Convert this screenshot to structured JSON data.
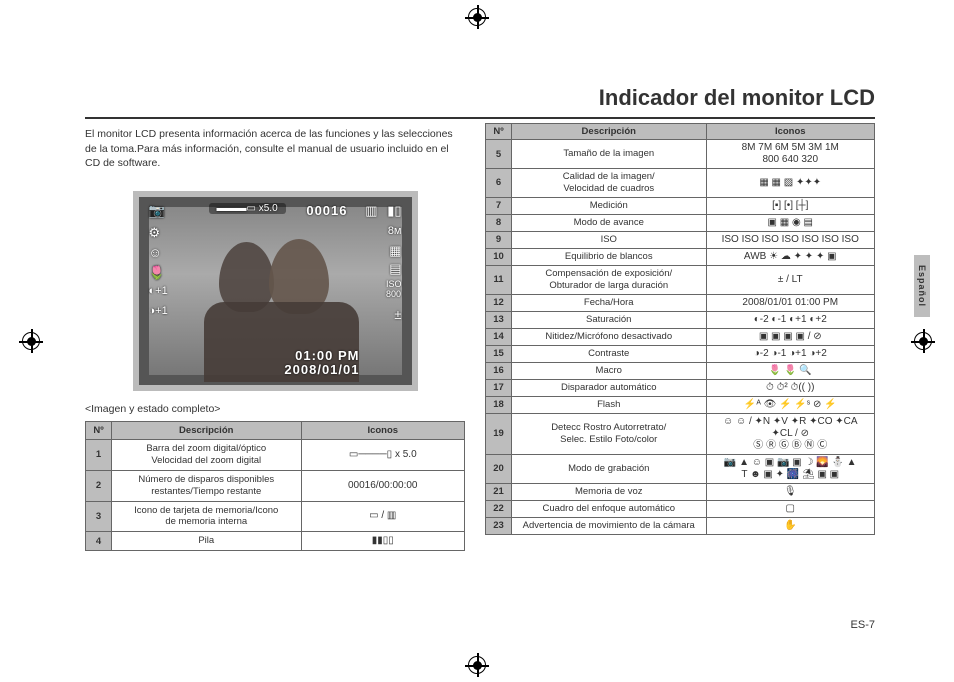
{
  "title": "Indicador del monitor LCD",
  "intro": "El monitor LCD presenta información acerca de las funciones y las selecciones de la toma.Para más información, consulte el manual de usuario incluido en el CD de software.",
  "lcd": {
    "zoom_label": "x5.0",
    "counter": "00016",
    "clock": "01:00 PM",
    "date": "2008/01/01",
    "overlay_icons_left": [
      "📷",
      "⚙",
      "☺",
      "🌷",
      "◐+1",
      "◑+1"
    ],
    "overlay_icons_right": [
      "8M",
      "▦",
      "▤",
      "150 800",
      "±"
    ],
    "overlay_top_icons": [
      "🔋",
      "📶"
    ]
  },
  "caption": "<Imagen y estado completo>",
  "table_headers": {
    "num": "Nº",
    "desc": "Descripción",
    "icons": "Iconos"
  },
  "left_rows": [
    {
      "n": "1",
      "desc": "Barra del zoom digital/óptico\nVelocidad del zoom digital",
      "icons": "▭────▯ x 5.0"
    },
    {
      "n": "2",
      "desc": "Número de disparos disponibles\nrestantes/Tiempo restante",
      "icons": "00016/00:00:00"
    },
    {
      "n": "3",
      "desc": "Icono de tarjeta de memoria/Icono\nde memoria interna",
      "icons": "▭ / ▥"
    },
    {
      "n": "4",
      "desc": "Pila",
      "icons": "▮▮▯▯"
    }
  ],
  "right_rows": [
    {
      "n": "5",
      "desc": "Tamaño de la imagen",
      "icons": "8M 7M 6M 5M 3M 1M\n800 640 320"
    },
    {
      "n": "6",
      "desc": "Calidad de la imagen/\nVelocidad de cuadros",
      "icons": "▦ ▦ ▨ ✦✦✦"
    },
    {
      "n": "7",
      "desc": "Medición",
      "icons": "[▪] [•] [┼]"
    },
    {
      "n": "8",
      "desc": "Modo de avance",
      "icons": "▣ ▦ ◉ ▤"
    },
    {
      "n": "9",
      "desc": "ISO",
      "icons": "ISO ISO ISO ISO ISO ISO ISO"
    },
    {
      "n": "10",
      "desc": "Equilibrio de blancos",
      "icons": "AWB ☀ ☁ ✦ ✦ ✦ ▣"
    },
    {
      "n": "11",
      "desc": "Compensación de exposición/\nObturador de larga duración",
      "icons": "± / LT"
    },
    {
      "n": "12",
      "desc": "Fecha/Hora",
      "icons": "2008/01/01 01:00 PM"
    },
    {
      "n": "13",
      "desc": "Saturación",
      "icons": "◐-2 ◐-1 ◐+1 ◐+2"
    },
    {
      "n": "14",
      "desc": "Nitidez/Micrófono desactivado",
      "icons": "▣ ▣ ▣ ▣ / ⊘"
    },
    {
      "n": "15",
      "desc": "Contraste",
      "icons": "◑-2 ◑-1 ◑+1 ◑+2"
    },
    {
      "n": "16",
      "desc": "Macro",
      "icons": "🌷 🌷 🔍"
    },
    {
      "n": "17",
      "desc": "Disparador automático",
      "icons": "⏱ ⏱² ⏱(( ))"
    },
    {
      "n": "18",
      "desc": "Flash",
      "icons": "⚡ᴬ 👁 ⚡ ⚡ˢ ⊘ ⚡"
    },
    {
      "n": "19",
      "desc": "Detecc Rostro Autorretrato/\nSelec. Estilo Foto/color",
      "icons": "☺ ☺ / ✦N ✦V ✦R ✦CO ✦CA ✦CL / ⊘\nⓈ Ⓡ Ⓖ Ⓑ Ⓝ Ⓒ"
    },
    {
      "n": "20",
      "desc": "Modo de grabación",
      "icons": "📷 ▲ ☺ ▣ 📷 ▣ ☽ 🌄 ⛄ ▲\nT ☻ ▣ ✦ 🎆 ⛱ ▣ ▣"
    },
    {
      "n": "21",
      "desc": "Memoria de voz",
      "icons": "🎙"
    },
    {
      "n": "22",
      "desc": "Cuadro del enfoque automático",
      "icons": "▢"
    },
    {
      "n": "23",
      "desc": "Advertencia de movimiento de la cámara",
      "icons": "✋"
    }
  ],
  "lang_tab": "Español",
  "page_number": "ES-7",
  "colors": {
    "header_bg": "#bdbdbd",
    "border": "#666666",
    "title_rule": "#333333",
    "lcd_border": "#bbbbbb",
    "lcd_bg": "#555555"
  }
}
